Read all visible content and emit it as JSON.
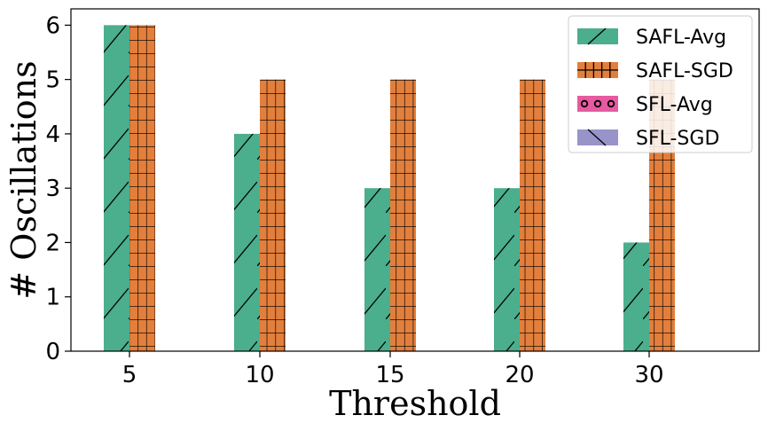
{
  "chart_data": {
    "type": "bar",
    "title": "",
    "xlabel": "Threshold",
    "ylabel": "# Oscillations",
    "categories": [
      "5",
      "10",
      "15",
      "20",
      "30"
    ],
    "ylim": [
      0,
      6.3
    ],
    "yticks": [
      "0",
      "1",
      "2",
      "3",
      "4",
      "5",
      "6"
    ],
    "grid": false,
    "legend_position": "top-right",
    "series": [
      {
        "name": "SAFL-Avg",
        "color": "#4bae8c",
        "hatch": "diagonal",
        "values": [
          6,
          4,
          3,
          3,
          2
        ]
      },
      {
        "name": "SAFL-SGD",
        "color": "#e37f3c",
        "hatch": "grid",
        "values": [
          6,
          5,
          5,
          5,
          5
        ]
      },
      {
        "name": "SFL-Avg",
        "color": "#e55aa0",
        "hatch": "circles",
        "values": [
          null,
          null,
          null,
          null,
          null
        ]
      },
      {
        "name": "SFL-SGD",
        "color": "#9893c9",
        "hatch": "backslash",
        "values": [
          null,
          null,
          null,
          null,
          null
        ]
      }
    ]
  }
}
